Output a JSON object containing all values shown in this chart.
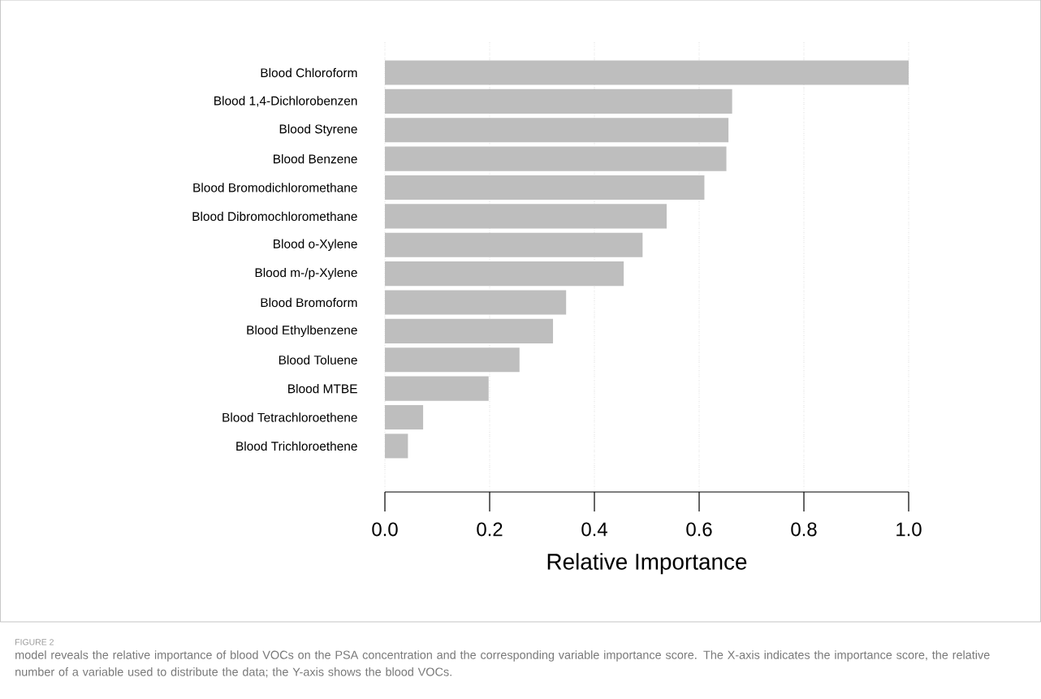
{
  "chart_data": {
    "type": "bar",
    "orientation": "horizontal",
    "categories": [
      "Blood Chloroform",
      "Blood 1,4-Dichlorobenzen",
      "Blood Styrene",
      "Blood Benzene",
      "Blood Bromodichloromethane",
      "Blood Dibromochloromethane",
      "Blood o-Xylene",
      "Blood m-/p-Xylene",
      "Blood Bromoform",
      "Blood Ethylbenzene",
      "Blood Toluene",
      "Blood MTBE",
      "Blood Tetrachloroethene",
      "Blood Trichloroethene"
    ],
    "values": [
      1.0,
      0.663,
      0.656,
      0.652,
      0.61,
      0.538,
      0.492,
      0.456,
      0.346,
      0.321,
      0.257,
      0.198,
      0.073,
      0.044
    ],
    "color": "#bebebe",
    "xlim": [
      0,
      1
    ],
    "xticks": [
      {
        "value": 0,
        "label": "0.0"
      },
      0.2,
      0.4,
      0.6,
      0.8,
      {
        "value": 1,
        "label": "1.0"
      }
    ],
    "xlabel": "Relative Importance",
    "grid": "x",
    "annotations": [
      "FIGURE 2",
      "model reveals the relative importance of blood VOCs on the PSA concentration and the corresponding variable importance score. The X-axis indicates the importance score, the relative number of a variable used to distribute the data; the Y-axis shows the blood VOCs."
    ]
  }
}
